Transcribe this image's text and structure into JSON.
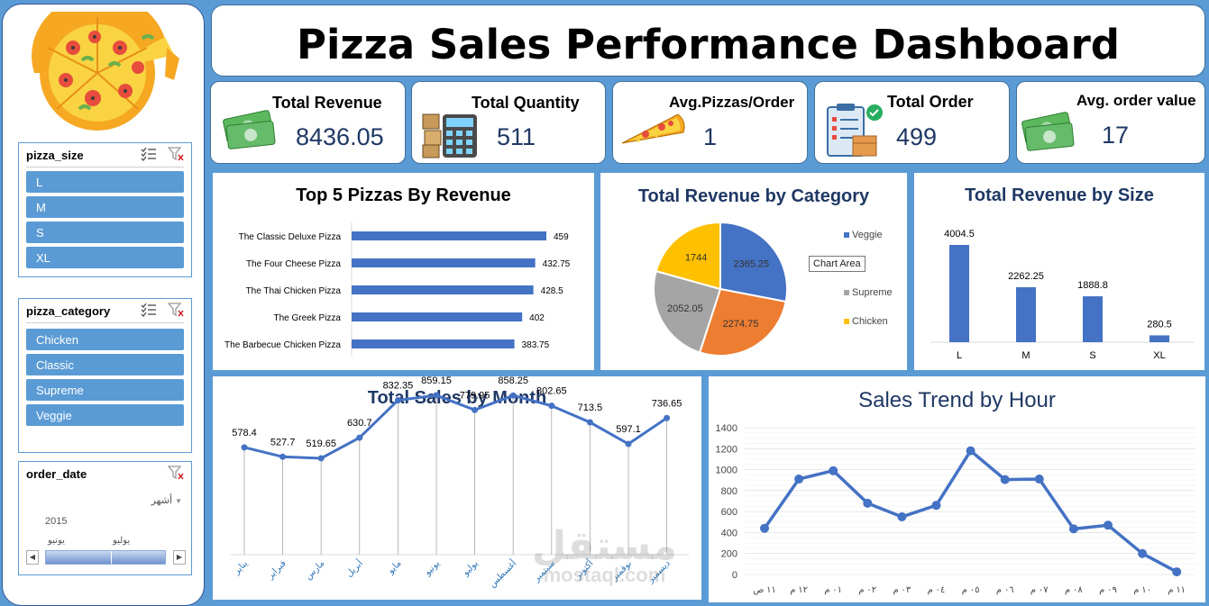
{
  "title": "Pizza Sales Performance Dashboard",
  "kpis": [
    {
      "label": "Total Revenue",
      "value": "8436.05",
      "icon": "money-icon"
    },
    {
      "label": "Total Quantity",
      "value": "511",
      "icon": "calculator-icon"
    },
    {
      "label": "Avg.Pizzas/Order",
      "value": "1",
      "icon": "pizza-slice-icon"
    },
    {
      "label": "Total Order",
      "value": "499",
      "icon": "clipboard-icon"
    },
    {
      "label": "Avg. order value",
      "value": "17",
      "icon": "money-icon"
    }
  ],
  "slicers": {
    "size": {
      "title": "pizza_size",
      "items": [
        "L",
        "M",
        "S",
        "XL"
      ]
    },
    "category": {
      "title": "pizza_category",
      "items": [
        "Chicken",
        "Classic",
        "Supreme",
        "Veggie"
      ]
    },
    "date": {
      "title": "order_date",
      "period": "أشهر",
      "year": "2015",
      "months": [
        "يونيو",
        "يوليو"
      ]
    }
  },
  "tooltip": "Chart Area",
  "watermark": {
    "arabic": "مستقل",
    "latin": "mostaql.com"
  },
  "colors": {
    "accent": "#4472c4",
    "orange": "#ed7d31",
    "gray": "#a5a5a5",
    "yellow": "#ffc000",
    "background": "#5b9bd5"
  },
  "chart_data": [
    {
      "type": "bar",
      "title": "Top 5 Pizzas By Revenue",
      "orientation": "horizontal",
      "categories": [
        "The Classic Deluxe Pizza",
        "The Four Cheese Pizza",
        "The Thai Chicken Pizza",
        "The Greek Pizza",
        "The Barbecue Chicken Pizza"
      ],
      "values": [
        459,
        432.75,
        428.5,
        402,
        383.75
      ],
      "labels": [
        "459",
        "432.75",
        "428.5",
        "402",
        "383.75"
      ]
    },
    {
      "type": "pie",
      "title": "Total Revenue by Category",
      "categories": [
        "Veggie",
        "Classic",
        "Supreme",
        "Chicken"
      ],
      "legend_labels": [
        "Veggie",
        "sic",
        "Supreme",
        "Chicken"
      ],
      "values": [
        2365.25,
        2274.75,
        2052.05,
        1744
      ],
      "labels": [
        "2365.25",
        "2274.75",
        "2052.05",
        "1744"
      ],
      "legend": "right"
    },
    {
      "type": "bar",
      "title": "Total Revenue by Size",
      "categories": [
        "L",
        "M",
        "S",
        "XL"
      ],
      "values": [
        4004.5,
        2262.25,
        1888.8,
        280.5
      ],
      "labels": [
        "4004.5",
        "2262.25",
        "1888.8",
        "280.5"
      ],
      "ylim": [
        0,
        4500
      ]
    },
    {
      "type": "line",
      "title": "Total Sales by Month",
      "categories": [
        "يناير",
        "فبراير",
        "مارس",
        "أبريل",
        "مايو",
        "يونيو",
        "يوليو",
        "أغسطس",
        "سبتمبر",
        "أكتوبر",
        "نوفمبر",
        "ديسمبر"
      ],
      "values": [
        578.4,
        527.7,
        519.65,
        630.7,
        832.35,
        859.15,
        779.95,
        858.25,
        802.65,
        713.5,
        597.1,
        736.65
      ],
      "labels": [
        "578.4",
        "527.7",
        "519.65",
        "630.7",
        "832.35",
        "859.15",
        "779.95",
        "858.25",
        "802.65",
        "713.5",
        "597.1",
        "736.65"
      ],
      "ylim": [
        0,
        1000
      ]
    },
    {
      "type": "line",
      "title": "Sales Trend by Hour",
      "categories": [
        "١١ ص",
        "١٢ م",
        "٠١ م",
        "٠٢ م",
        "٠٣ م",
        "٠٤ م",
        "٠٥ م",
        "٠٦ م",
        "٠٧ م",
        "٠٨ م",
        "٠٩ م",
        "١٠ م",
        "١١ م"
      ],
      "values": [
        440,
        910,
        990,
        680,
        550,
        660,
        1180,
        905,
        910,
        435,
        470,
        200,
        25
      ],
      "ylim": [
        0,
        1400
      ],
      "yticks": [
        "0",
        "200",
        "400",
        "600",
        "800",
        "1000",
        "1200",
        "1400"
      ],
      "grid": true
    }
  ]
}
